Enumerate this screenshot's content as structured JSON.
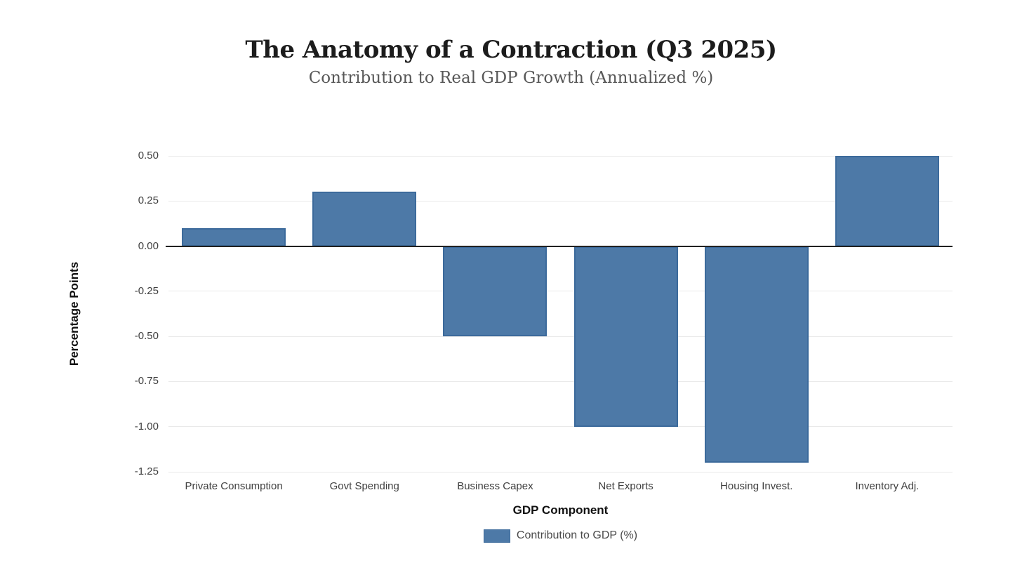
{
  "chart_data": {
    "type": "bar",
    "title": "The Anatomy of a Contraction (Q3 2025)",
    "subtitle": "Contribution to Real GDP Growth (Annualized %)",
    "categories": [
      "Private Consumption",
      "Govt Spending",
      "Business Capex",
      "Net Exports",
      "Housing Invest.",
      "Inventory Adj."
    ],
    "series": [
      {
        "name": "Contribution to GDP (%)",
        "values": [
          0.1,
          0.3,
          -0.5,
          -1.0,
          -1.2,
          0.5
        ]
      }
    ],
    "xlabel": "GDP Component",
    "ylabel": "Percentage Points",
    "ylim": [
      -1.25,
      0.5
    ],
    "ytick_step": 0.25,
    "yticks": [
      "0.50",
      "0.25",
      "0.00",
      "-0.25",
      "-0.50",
      "-0.75",
      "-1.00",
      "-1.25"
    ],
    "grid": true,
    "legend_position": "bottom",
    "colors": {
      "bar_fill": "#4d79a7",
      "bar_border": "#3c6a9b",
      "gridline": "#e9e9e9",
      "zero_line": "#212121",
      "tick_label": "#3f3f3f",
      "axis_title": "#111111",
      "title": "#1c1c1c",
      "subtitle": "#575757",
      "legend_text": "#4a4a4a",
      "background": "#ffffff"
    }
  }
}
